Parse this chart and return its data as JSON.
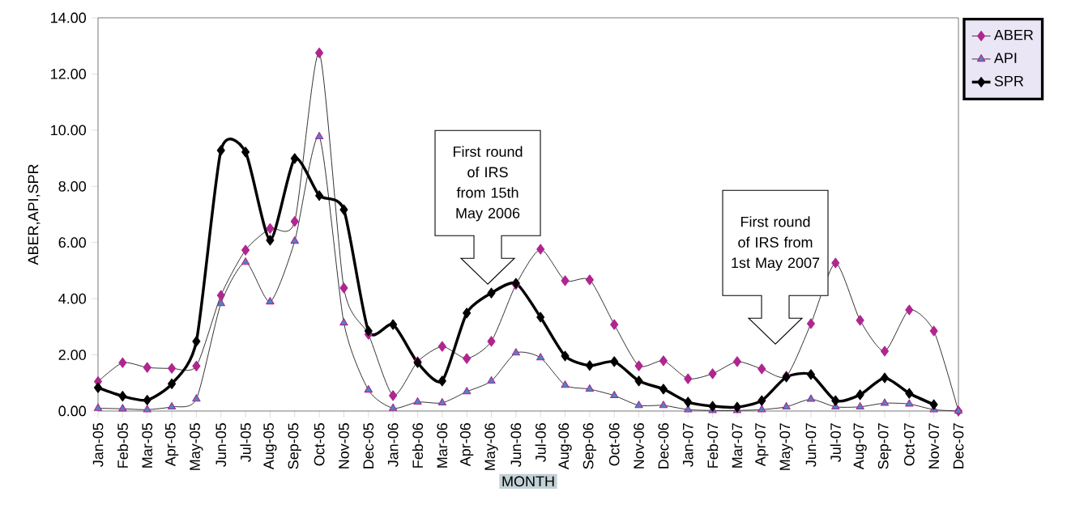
{
  "chart_data": {
    "type": "line",
    "xlabel": "MONTH",
    "ylabel": "ABER,API,SPR",
    "categories": [
      "Jan-05",
      "Feb-05",
      "Mar-05",
      "Apr-05",
      "May-05",
      "Jun-05",
      "Jul-05",
      "Aug-05",
      "Sep-05",
      "Oct-05",
      "Nov-05",
      "Dec-05",
      "Jan-06",
      "Feb-06",
      "Mar-06",
      "Apr-06",
      "May-06",
      "Jun-06",
      "Jul-06",
      "Aug-06",
      "Sep-06",
      "Oct-06",
      "Nov-06",
      "Dec-06",
      "Jan-07",
      "Feb-07",
      "Mar-07",
      "Apr-07",
      "May-07",
      "Jun-07",
      "Jul-07",
      "Aug-07",
      "Sep-07",
      "Oct-07",
      "Nov-07",
      "Dec-07"
    ],
    "series": [
      {
        "name": "ABER",
        "color": "#b0258f",
        "marker": "diamond",
        "values": [
          1.05,
          1.72,
          1.55,
          1.52,
          1.6,
          4.12,
          5.73,
          6.5,
          6.75,
          12.75,
          4.38,
          2.73,
          0.55,
          1.76,
          2.3,
          1.87,
          2.48,
          4.5,
          5.76,
          4.64,
          4.67,
          3.08,
          1.61,
          1.79,
          1.15,
          1.33,
          1.76,
          1.5,
          1.24,
          3.11,
          5.27,
          3.23,
          2.13,
          3.6,
          2.85,
          0
        ]
      },
      {
        "name": "API",
        "color": "#4a86c5",
        "marker": "triangle",
        "values": [
          0.1,
          0.08,
          0.05,
          0.15,
          0.43,
          3.83,
          5.3,
          3.89,
          6.05,
          9.77,
          3.14,
          0.75,
          0.1,
          0.32,
          0.29,
          0.69,
          1.07,
          2.07,
          1.9,
          0.92,
          0.78,
          0.55,
          0.2,
          0.2,
          0.05,
          0.02,
          0.02,
          0.05,
          0.15,
          0.42,
          0.15,
          0.15,
          0.28,
          0.25,
          0.05,
          0
        ]
      },
      {
        "name": "SPR",
        "color": "#000000",
        "marker": "diamond",
        "values": [
          0.83,
          0.53,
          0.39,
          0.97,
          2.48,
          9.28,
          9.22,
          6.08,
          8.99,
          7.67,
          7.17,
          2.85,
          3.08,
          1.72,
          1.07,
          3.49,
          4.2,
          4.55,
          3.34,
          1.96,
          1.62,
          1.76,
          1.07,
          0.78,
          0.32,
          0.17,
          0.14,
          0.37,
          1.21,
          1.3,
          0.37,
          0.58,
          1.18,
          0.63,
          0.23,
          null
        ]
      }
    ],
    "ylim": [
      0,
      14
    ],
    "yticks": [
      {
        "value": 0,
        "label": "0.00"
      },
      {
        "value": 2,
        "label": "2.00"
      },
      {
        "value": 4,
        "label": "4.00"
      },
      {
        "value": 6,
        "label": "6.00"
      },
      {
        "value": 8,
        "label": "8.00"
      },
      {
        "value": 10,
        "label": "10.00"
      },
      {
        "value": 12,
        "label": "12.00"
      },
      {
        "value": 14,
        "label": "14.00"
      }
    ],
    "annotations": [
      "First round of IRS from 15th May 2006",
      "First round of IRS from 1st May 2007"
    ],
    "legend": "top right",
    "grid": false,
    "line_style": "solid"
  }
}
